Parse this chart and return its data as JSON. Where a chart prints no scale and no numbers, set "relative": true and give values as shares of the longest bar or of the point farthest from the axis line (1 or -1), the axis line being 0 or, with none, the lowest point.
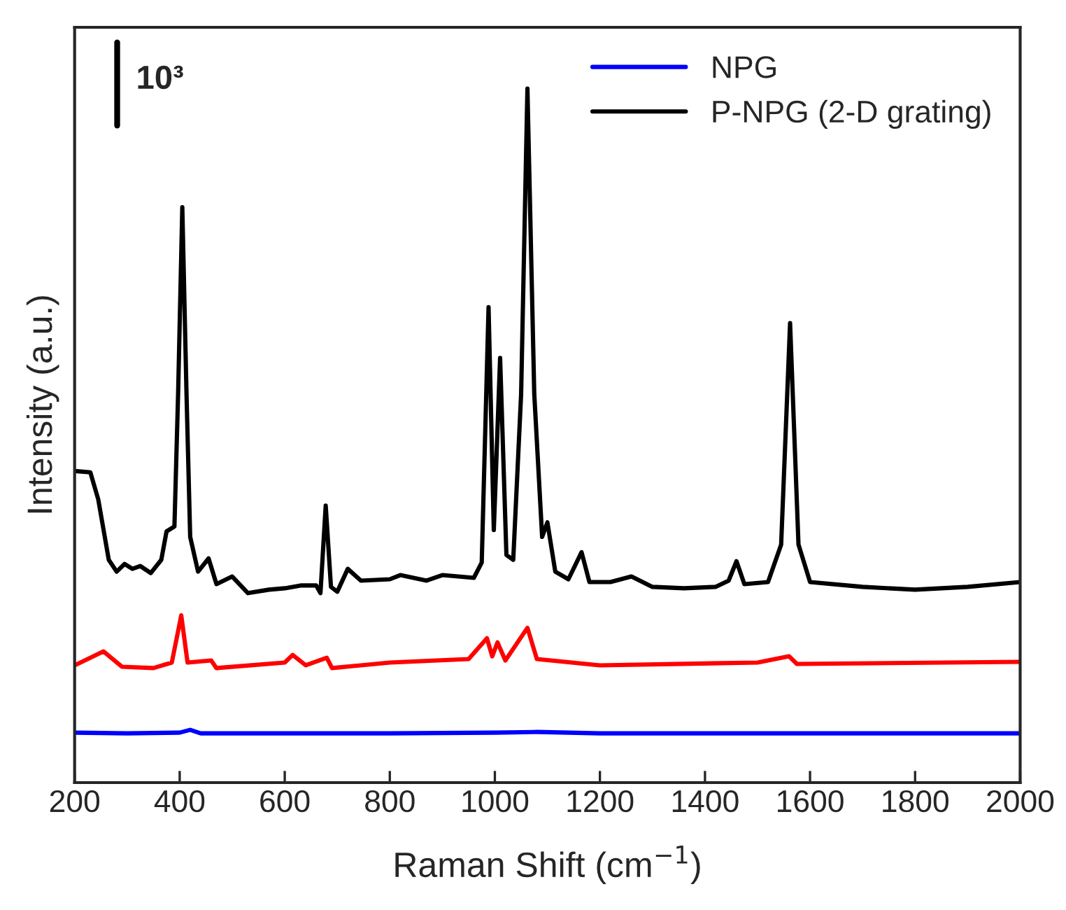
{
  "chart_data": {
    "type": "line",
    "relative": true,
    "xlabel": "Raman Shift (cm$^{−1}$)",
    "ylabel": "Intensity (a.u.)",
    "xlim": [
      200,
      2000
    ],
    "xticks": [
      200,
      400,
      600,
      800,
      1000,
      1200,
      1400,
      1600,
      1800,
      2000
    ],
    "annotations": [
      "10³"
    ],
    "legend": "top right",
    "grid": false,
    "series": [
      {
        "name": "NPG",
        "color": "#0000ff",
        "x": [
          200,
          300,
          400,
          420,
          440,
          600,
          800,
          1000,
          1080,
          1200,
          1600,
          2000
        ],
        "values": [
          0.072,
          0.071,
          0.072,
          0.076,
          0.071,
          0.071,
          0.071,
          0.072,
          0.073,
          0.071,
          0.071,
          0.071
        ]
      },
      {
        "color": "#ff0000",
        "x": [
          200,
          255,
          290,
          350,
          385,
          403,
          415,
          460,
          470,
          600,
          615,
          640,
          680,
          690,
          800,
          950,
          985,
          995,
          1005,
          1020,
          1062,
          1080,
          1200,
          1500,
          1560,
          1575,
          2000
        ],
        "values": [
          0.169,
          0.189,
          0.167,
          0.165,
          0.173,
          0.241,
          0.173,
          0.176,
          0.165,
          0.173,
          0.184,
          0.169,
          0.18,
          0.165,
          0.173,
          0.178,
          0.208,
          0.182,
          0.202,
          0.176,
          0.223,
          0.178,
          0.169,
          0.173,
          0.182,
          0.171,
          0.174
        ]
      },
      {
        "name": "P-NPG (2-D grating)",
        "color": "#000000",
        "x": [
          200,
          230,
          245,
          265,
          280,
          295,
          310,
          325,
          345,
          365,
          375,
          390,
          397,
          405,
          413,
          420,
          435,
          455,
          470,
          500,
          530,
          570,
          600,
          630,
          660,
          668,
          678,
          688,
          700,
          720,
          745,
          800,
          820,
          870,
          900,
          960,
          975,
          988,
          998,
          1010,
          1022,
          1035,
          1050,
          1062,
          1075,
          1090,
          1100,
          1115,
          1140,
          1165,
          1180,
          1220,
          1260,
          1300,
          1360,
          1420,
          1445,
          1460,
          1475,
          1520,
          1545,
          1562,
          1578,
          1600,
          1700,
          1800,
          1900,
          2000
        ],
        "values": [
          0.449,
          0.447,
          0.408,
          0.321,
          0.304,
          0.315,
          0.308,
          0.312,
          0.302,
          0.321,
          0.362,
          0.369,
          0.56,
          0.829,
          0.56,
          0.354,
          0.304,
          0.323,
          0.286,
          0.297,
          0.273,
          0.278,
          0.28,
          0.284,
          0.284,
          0.273,
          0.399,
          0.282,
          0.275,
          0.308,
          0.291,
          0.293,
          0.299,
          0.291,
          0.299,
          0.295,
          0.317,
          0.685,
          0.364,
          0.612,
          0.328,
          0.321,
          0.56,
          1.0,
          0.56,
          0.354,
          0.375,
          0.304,
          0.293,
          0.332,
          0.289,
          0.289,
          0.297,
          0.282,
          0.28,
          0.282,
          0.291,
          0.319,
          0.286,
          0.289,
          0.343,
          0.662,
          0.343,
          0.289,
          0.282,
          0.278,
          0.282,
          0.289
        ]
      }
    ]
  }
}
